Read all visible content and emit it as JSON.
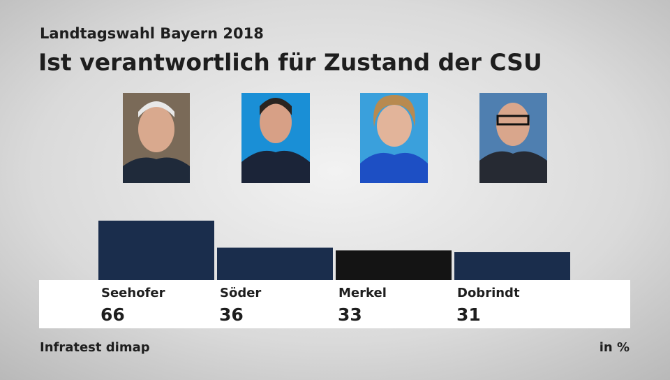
{
  "chart_data": {
    "type": "bar",
    "subtitle": "Landtagswahl Bayern 2018",
    "title": "Ist verantwortlich für Zustand der CSU",
    "categories": [
      "Seehofer",
      "Söder",
      "Merkel",
      "Dobrindt"
    ],
    "values": [
      66,
      36,
      33,
      31
    ],
    "colors": [
      "#1a2d4c",
      "#1a2d4c",
      "#141414",
      "#1a2d4c"
    ],
    "source": "Infratest dimap",
    "unit_label": "in %"
  }
}
